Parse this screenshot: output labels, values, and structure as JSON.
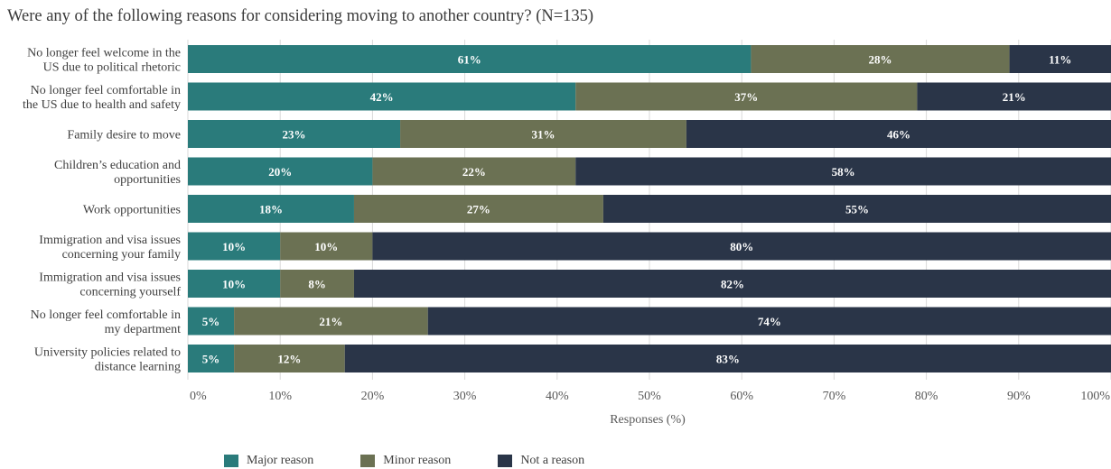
{
  "chart_data": {
    "type": "bar",
    "orientation": "horizontal-stacked",
    "title": "Were any of the following reasons for considering moving to another country? (N=135)",
    "xlabel": "Responses (%)",
    "ylabel": "",
    "xlim": [
      0,
      100
    ],
    "grid": true,
    "legend_position": "bottom",
    "x_ticks": [
      "0%",
      "10%",
      "20%",
      "30%",
      "40%",
      "50%",
      "60%",
      "70%",
      "80%",
      "90%",
      "100%"
    ],
    "categories": [
      [
        "No longer feel welcome in the",
        "US due to political rhetoric"
      ],
      [
        "No longer feel comfortable in",
        "the US due to health and safety"
      ],
      [
        "Family desire to move"
      ],
      [
        "Children’s education and",
        "opportunities"
      ],
      [
        "Work opportunities"
      ],
      [
        "Immigration and visa issues",
        "concerning your family"
      ],
      [
        "Immigration and visa issues",
        "concerning yourself"
      ],
      [
        "No longer feel comfortable in",
        "my department"
      ],
      [
        "University policies related to",
        "distance learning"
      ]
    ],
    "series": [
      {
        "name": "Major reason",
        "color": "#2a7b7b",
        "values": [
          61,
          42,
          23,
          20,
          18,
          10,
          10,
          5,
          5
        ]
      },
      {
        "name": "Minor reason",
        "color": "#6b7153",
        "values": [
          28,
          37,
          31,
          22,
          27,
          10,
          8,
          21,
          12
        ]
      },
      {
        "name": "Not a reason",
        "color": "#2a3548",
        "values": [
          11,
          21,
          46,
          58,
          55,
          80,
          82,
          74,
          83
        ]
      }
    ]
  }
}
